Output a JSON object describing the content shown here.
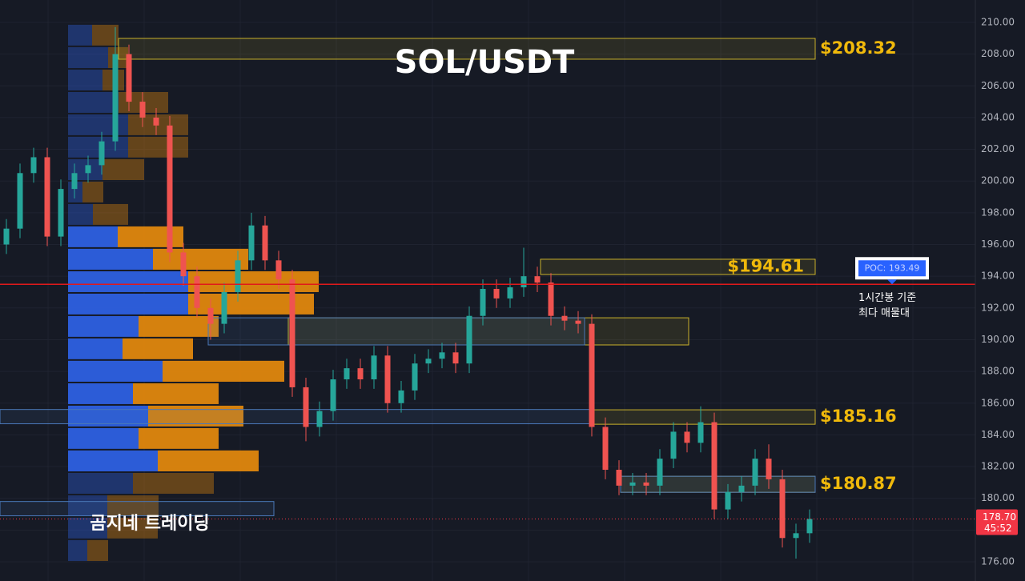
{
  "chart_data": {
    "type": "candlestick",
    "title": "SOL/USDT",
    "watermark": "곰지네 트레이딩",
    "up_color": "#26a69a",
    "down_color": "#ef5350",
    "ylim": [
      174.79,
      211.41
    ],
    "yticks": [
      {
        "value": 176,
        "label": "176.00"
      },
      {
        "value": 178,
        "label": "178.00"
      },
      {
        "value": 180,
        "label": "180.00"
      },
      {
        "value": 182,
        "label": "182.00"
      },
      {
        "value": 184,
        "label": "184.00"
      },
      {
        "value": 186,
        "label": "186.00"
      },
      {
        "value": 188,
        "label": "188.00"
      },
      {
        "value": 190,
        "label": "190.00"
      },
      {
        "value": 192,
        "label": "192.00"
      },
      {
        "value": 194,
        "label": "194.00"
      },
      {
        "value": 196,
        "label": "196.00"
      },
      {
        "value": 198,
        "label": "198.00"
      },
      {
        "value": 200,
        "label": "200.00"
      },
      {
        "value": 202,
        "label": "202.00"
      },
      {
        "value": 204,
        "label": "204.00"
      },
      {
        "value": 206,
        "label": "206.00"
      },
      {
        "value": 208,
        "label": "208.00"
      },
      {
        "value": 210,
        "label": "210.00"
      }
    ],
    "grid": true,
    "open": [
      196,
      197,
      200.5,
      201.5,
      196.5,
      199.5,
      200.5,
      201,
      202.5,
      208,
      205,
      204,
      203.5,
      195.5,
      194,
      192,
      191,
      193,
      195,
      197.2,
      195,
      193.8,
      187,
      184.5,
      185.5,
      187.5,
      188.2,
      187.5,
      189,
      186,
      186.8,
      188.5,
      188.8,
      189.2,
      188.5,
      191.5,
      193.2,
      192.6,
      193.3,
      194,
      193.6,
      191.5,
      191.2,
      191.0,
      184.5,
      181.8,
      180.8,
      181.0,
      180.8,
      182.5,
      184.2,
      183.5,
      184.8,
      179.3,
      180.4,
      180.8,
      182.5,
      181.2,
      177.5,
      177.8
    ],
    "high": [
      197.6,
      201.1,
      202.1,
      202.1,
      200.1,
      201.1,
      201.6,
      203.1,
      209.7,
      208.6,
      205.6,
      204.6,
      204.1,
      196.1,
      194.6,
      192.6,
      193.6,
      195.6,
      198.0,
      197.8,
      195.6,
      194.4,
      187.6,
      186.1,
      188.1,
      188.8,
      188.8,
      189.6,
      189.6,
      187.4,
      189.1,
      189.4,
      189.8,
      189.8,
      192.1,
      193.8,
      193.8,
      193.9,
      195.8,
      194.6,
      194.2,
      192.1,
      191.8,
      191.6,
      185.1,
      182.4,
      181.6,
      181.6,
      183.1,
      184.8,
      184.8,
      185.8,
      185.4,
      180.9,
      181.4,
      183.1,
      183.4,
      181.8,
      178.4,
      179.3
    ],
    "low": [
      195.4,
      196.4,
      199.9,
      195.9,
      195.9,
      198.9,
      199.9,
      200.4,
      201.9,
      204.4,
      203.4,
      202.9,
      194.9,
      193.4,
      191.4,
      190.0,
      190.4,
      192.4,
      194.4,
      194.4,
      193.2,
      186.4,
      183.6,
      183.9,
      184.9,
      186.9,
      186.9,
      186.9,
      185.4,
      185.4,
      186.2,
      187.9,
      188.2,
      187.9,
      187.9,
      190.9,
      192.0,
      192.0,
      192.7,
      193.0,
      190.9,
      190.6,
      190.4,
      183.9,
      181.2,
      180.2,
      180.2,
      180.2,
      180.2,
      181.9,
      182.9,
      182.9,
      178.7,
      178.7,
      179.8,
      180.2,
      180.6,
      176.9,
      176.2,
      177.2
    ],
    "close": [
      197,
      200.5,
      201.5,
      196.5,
      199.5,
      200.5,
      201,
      202.5,
      208,
      205,
      204,
      203.5,
      195.5,
      194,
      192,
      191,
      193,
      195,
      197.2,
      195,
      193.8,
      187,
      184.5,
      185.5,
      187.5,
      188.2,
      187.5,
      189,
      186,
      186.8,
      188.5,
      188.8,
      189.2,
      188.5,
      191.5,
      193.2,
      192.6,
      193.3,
      194,
      193.6,
      191.5,
      191.2,
      191.0,
      184.5,
      181.8,
      180.8,
      181.0,
      180.8,
      182.5,
      184.2,
      183.5,
      184.8,
      179.3,
      180.4,
      180.8,
      182.5,
      181.2,
      177.5,
      177.8,
      178.7
    ],
    "profile": {
      "price_edges": [
        209.9,
        208.49,
        207.07,
        205.66,
        204.25,
        202.84,
        201.43,
        200.01,
        198.6,
        197.19,
        195.78,
        194.36,
        192.95,
        191.54,
        190.13,
        188.72,
        187.3,
        185.89,
        184.48,
        183.07,
        181.65,
        180.24,
        178.83,
        177.42,
        176.0
      ],
      "buy": [
        30,
        50,
        43,
        63,
        75,
        75,
        43,
        18,
        31,
        62,
        106,
        150,
        150,
        88,
        68,
        118,
        81,
        100,
        88,
        112,
        81,
        49,
        49,
        24
      ],
      "sell": [
        33,
        25,
        27,
        62,
        75,
        75,
        52,
        26,
        44,
        82,
        119,
        163,
        157,
        100,
        88,
        152,
        107,
        119,
        100,
        126,
        101,
        64,
        63,
        26
      ],
      "buy_color": "#2f62e6",
      "sell_color": "#e68a0c",
      "value_area": [
        181.65,
        197.19
      ]
    },
    "zones": [
      {
        "label": "$208.32",
        "top": 208.99,
        "bottom": 207.68,
        "color": "#c9b12a"
      },
      {
        "label": "$194.61",
        "top": 195.07,
        "bottom": 194.11,
        "color": "#c9b12a"
      },
      {
        "label": "$185.16",
        "top": 185.58,
        "bottom": 184.67,
        "color": "#c9b12a"
      },
      {
        "label": "$180.87",
        "top": 181.39,
        "bottom": 180.38,
        "color": "#c9b12a"
      },
      {
        "top": 191.38,
        "bottom": 189.67,
        "color": "#c9b12a"
      },
      {
        "top": 191.38,
        "bottom": 189.67,
        "color": "#4a78b8"
      },
      {
        "top": 185.6,
        "bottom": 184.7,
        "color": "#4a78b8"
      },
      {
        "top": 179.8,
        "bottom": 178.9,
        "color": "#4a78b8"
      },
      {
        "top": 181.39,
        "bottom": 180.38,
        "color": "#4a78b8"
      }
    ],
    "poc": {
      "value": 193.49,
      "label": "POC: 193.49",
      "color": "#e0191b",
      "note": [
        "1시간봉 기준",
        "최다 매물대"
      ]
    },
    "last_price": {
      "value": 178.7,
      "label": "178.70",
      "countdown": "45:52",
      "color": "#f23645"
    }
  }
}
